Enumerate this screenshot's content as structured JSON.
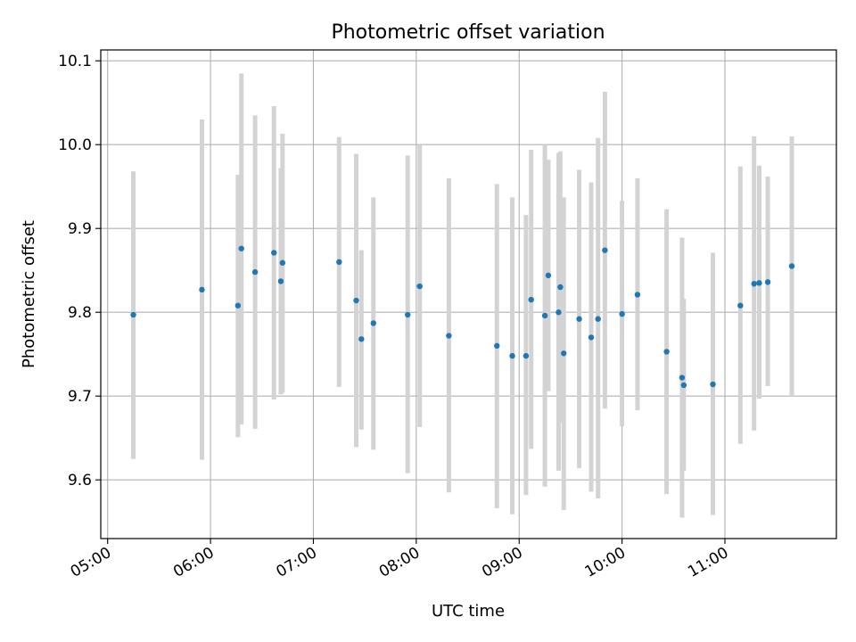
{
  "chart_data": {
    "type": "scatter",
    "title": "Photometric offset variation",
    "xlabel": "UTC time",
    "ylabel": "Photometric offset",
    "x_is_time": true,
    "xlim": [
      "04:56",
      "12:05"
    ],
    "ylim": [
      9.53,
      10.113
    ],
    "x_ticks": [
      "05:00",
      "06:00",
      "07:00",
      "08:00",
      "09:00",
      "10:00",
      "11:00"
    ],
    "y_ticks": [
      9.6,
      9.7,
      9.8,
      9.9,
      10.0,
      10.1
    ],
    "y_tick_labels": [
      "9.6",
      "9.7",
      "9.8",
      "9.9",
      "10.0",
      "10.1"
    ],
    "grid": true,
    "colors": {
      "point": "#1f77b4",
      "errorbar": "#d3d3d3",
      "grid": "#b0b0b0"
    },
    "points": [
      {
        "t": "05:15",
        "y": 9.797,
        "lo": 9.625,
        "hi": 9.968
      },
      {
        "t": "05:55",
        "y": 9.827,
        "lo": 9.624,
        "hi": 10.03
      },
      {
        "t": "06:16",
        "y": 9.808,
        "lo": 9.651,
        "hi": 9.964
      },
      {
        "t": "06:18",
        "y": 9.876,
        "lo": 9.666,
        "hi": 10.085
      },
      {
        "t": "06:26",
        "y": 9.848,
        "lo": 9.661,
        "hi": 10.035
      },
      {
        "t": "06:37",
        "y": 9.871,
        "lo": 9.696,
        "hi": 10.046
      },
      {
        "t": "06:41",
        "y": 9.837,
        "lo": 9.702,
        "hi": 9.972
      },
      {
        "t": "06:42",
        "y": 9.859,
        "lo": 9.704,
        "hi": 10.013
      },
      {
        "t": "07:15",
        "y": 9.86,
        "lo": 9.711,
        "hi": 10.009
      },
      {
        "t": "07:25",
        "y": 9.814,
        "lo": 9.639,
        "hi": 9.989
      },
      {
        "t": "07:28",
        "y": 9.768,
        "lo": 9.66,
        "hi": 9.874
      },
      {
        "t": "07:35",
        "y": 9.787,
        "lo": 9.636,
        "hi": 9.937
      },
      {
        "t": "07:55",
        "y": 9.797,
        "lo": 9.608,
        "hi": 9.987
      },
      {
        "t": "08:02",
        "y": 9.831,
        "lo": 9.663,
        "hi": 10.0
      },
      {
        "t": "08:19",
        "y": 9.772,
        "lo": 9.585,
        "hi": 9.96
      },
      {
        "t": "08:47",
        "y": 9.76,
        "lo": 9.566,
        "hi": 9.953
      },
      {
        "t": "08:56",
        "y": 9.748,
        "lo": 9.559,
        "hi": 9.937
      },
      {
        "t": "09:04",
        "y": 9.748,
        "lo": 9.582,
        "hi": 9.916
      },
      {
        "t": "09:07",
        "y": 9.815,
        "lo": 9.637,
        "hi": 9.994
      },
      {
        "t": "09:15",
        "y": 9.796,
        "lo": 9.592,
        "hi": 10.0
      },
      {
        "t": "09:17",
        "y": 9.844,
        "lo": 9.706,
        "hi": 9.982
      },
      {
        "t": "09:23",
        "y": 9.8,
        "lo": 9.611,
        "hi": 9.99
      },
      {
        "t": "09:24",
        "y": 9.83,
        "lo": 9.668,
        "hi": 9.992
      },
      {
        "t": "09:26",
        "y": 9.751,
        "lo": 9.564,
        "hi": 9.937
      },
      {
        "t": "09:35",
        "y": 9.792,
        "lo": 9.614,
        "hi": 9.97
      },
      {
        "t": "09:42",
        "y": 9.77,
        "lo": 9.586,
        "hi": 9.955
      },
      {
        "t": "09:46",
        "y": 9.792,
        "lo": 9.578,
        "hi": 10.008
      },
      {
        "t": "09:50",
        "y": 9.874,
        "lo": 9.685,
        "hi": 10.063
      },
      {
        "t": "10:00",
        "y": 9.798,
        "lo": 9.664,
        "hi": 9.933
      },
      {
        "t": "10:09",
        "y": 9.821,
        "lo": 9.683,
        "hi": 9.96
      },
      {
        "t": "10:26",
        "y": 9.753,
        "lo": 9.583,
        "hi": 9.923
      },
      {
        "t": "10:35",
        "y": 9.722,
        "lo": 9.555,
        "hi": 9.889
      },
      {
        "t": "10:36",
        "y": 9.713,
        "lo": 9.611,
        "hi": 9.816
      },
      {
        "t": "10:53",
        "y": 9.714,
        "lo": 9.558,
        "hi": 9.871
      },
      {
        "t": "11:09",
        "y": 9.808,
        "lo": 9.643,
        "hi": 9.974
      },
      {
        "t": "11:17",
        "y": 9.834,
        "lo": 9.659,
        "hi": 10.01
      },
      {
        "t": "11:20",
        "y": 9.835,
        "lo": 9.697,
        "hi": 9.975
      },
      {
        "t": "11:25",
        "y": 9.836,
        "lo": 9.712,
        "hi": 9.962
      },
      {
        "t": "11:39",
        "y": 9.855,
        "lo": 9.7,
        "hi": 10.01
      }
    ]
  }
}
